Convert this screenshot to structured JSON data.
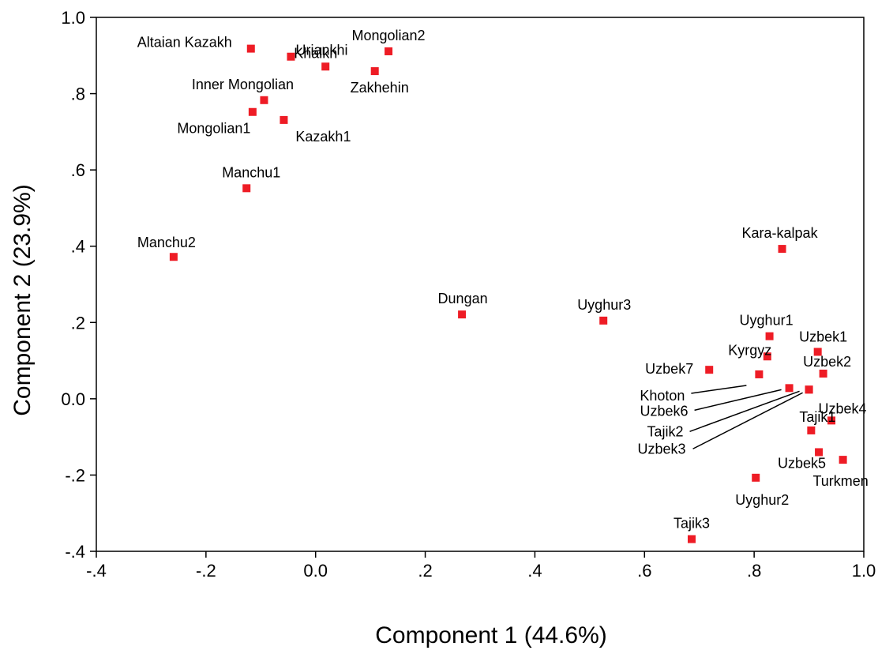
{
  "chart_data": {
    "type": "scatter",
    "xlabel": "Component 1 (44.6%)",
    "ylabel": "Component 2 (23.9%)",
    "xlim": [
      -0.4,
      1.0
    ],
    "ylim": [
      -0.4,
      1.0
    ],
    "x_ticks": [
      -0.4,
      -0.2,
      0.0,
      0.2,
      0.4,
      0.6,
      0.8,
      1.0
    ],
    "x_tick_labels": [
      "-.4",
      "-.2",
      "0.0",
      ".2",
      ".4",
      ".6",
      ".8",
      "1.0"
    ],
    "y_ticks": [
      1.0,
      0.8,
      0.6,
      0.4,
      0.2,
      0.0,
      -0.2,
      -0.4
    ],
    "y_tick_labels": [
      "1.0",
      ".8",
      ".6",
      ".4",
      ".2",
      "0.0",
      "-.2",
      "-.4"
    ],
    "marker_color": "#ee1c25",
    "grid": false,
    "legend": false,
    "points": [
      {
        "label": "Altaian Kazakh",
        "x": -0.118,
        "y": 0.918
      },
      {
        "label": "Uriankhi",
        "x": -0.045,
        "y": 0.897
      },
      {
        "label": "Khalkh",
        "x": 0.018,
        "y": 0.871
      },
      {
        "label": "Mongolian2",
        "x": 0.133,
        "y": 0.911
      },
      {
        "label": "Zakhehin",
        "x": 0.108,
        "y": 0.859
      },
      {
        "label": "Inner Mongolian",
        "x": -0.094,
        "y": 0.783
      },
      {
        "label": "Mongolian1",
        "x": -0.115,
        "y": 0.752
      },
      {
        "label": "Kazakh1",
        "x": -0.058,
        "y": 0.731
      },
      {
        "label": "Manchu1",
        "x": -0.126,
        "y": 0.552
      },
      {
        "label": "Manchu2",
        "x": -0.259,
        "y": 0.372
      },
      {
        "label": "Dungan",
        "x": 0.267,
        "y": 0.221
      },
      {
        "label": "Uyghur3",
        "x": 0.525,
        "y": 0.205
      },
      {
        "label": "Kara-kalpak",
        "x": 0.851,
        "y": 0.393
      },
      {
        "label": "Uyghur1",
        "x": 0.828,
        "y": 0.164
      },
      {
        "label": "Uzbek1",
        "x": 0.916,
        "y": 0.123
      },
      {
        "label": "Kyrgyz",
        "x": 0.824,
        "y": 0.111
      },
      {
        "label": "Uzbek2",
        "x": 0.926,
        "y": 0.066
      },
      {
        "label": "Uzbek7",
        "x": 0.718,
        "y": 0.076
      },
      {
        "label": "Khoton",
        "x": 0.809,
        "y": 0.064
      },
      {
        "label": "Uzbek6",
        "x": 0.864,
        "y": 0.028
      },
      {
        "label": "Tajik2",
        "x": 0.9,
        "y": 0.024
      },
      {
        "label": "Uzbek3",
        "x": 0.9,
        "y": 0.024
      },
      {
        "label": "Uzbek4",
        "x": 0.941,
        "y": -0.057
      },
      {
        "label": "Tajik1",
        "x": 0.904,
        "y": -0.083
      },
      {
        "label": "Uzbek5",
        "x": 0.918,
        "y": -0.14
      },
      {
        "label": "Turkmen",
        "x": 0.962,
        "y": -0.16
      },
      {
        "label": "Uyghur2",
        "x": 0.803,
        "y": -0.207
      },
      {
        "label": "Tajik3",
        "x": 0.686,
        "y": -0.368
      }
    ]
  }
}
